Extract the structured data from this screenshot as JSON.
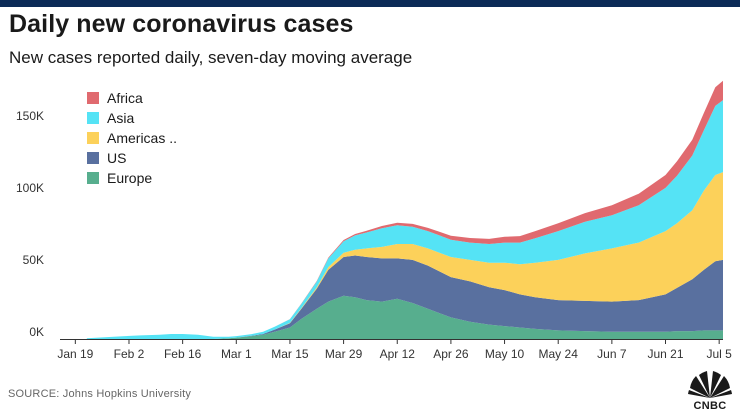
{
  "header": {
    "title": "Daily new coronavirus cases",
    "subtitle": "New cases reported daily, seven-day moving average"
  },
  "footer": {
    "source": "SOURCE: Johns Hopkins University",
    "logo_text": "CNBC"
  },
  "colors": {
    "Africa": "#e06a6f",
    "Asia": "#55e3f5",
    "Americas ..": "#fcd15a",
    "US": "#59709f",
    "Europe": "#57ae8e",
    "topbar": "#0b2a57"
  },
  "chart_data": {
    "type": "area",
    "stacked": true,
    "title": "Daily new coronavirus cases",
    "subtitle": "New cases reported daily, seven-day moving average",
    "xlabel": "",
    "ylabel": "",
    "ylim": [
      0,
      180000
    ],
    "xlim": [
      "2020-01-15",
      "2020-07-06"
    ],
    "grid": false,
    "legend_position": "top-left",
    "legend_order": [
      "Africa",
      "Asia",
      "Americas ..",
      "US",
      "Europe"
    ],
    "x_ticks": [
      "Jan 19",
      "Feb 2",
      "Feb 16",
      "Mar 1",
      "Mar 15",
      "Mar 29",
      "Apr 12",
      "Apr 26",
      "May 10",
      "May 24",
      "Jun 7",
      "Jun 21",
      "Jul 5"
    ],
    "x_tick_dates": [
      "2020-01-19",
      "2020-02-02",
      "2020-02-16",
      "2020-03-01",
      "2020-03-15",
      "2020-03-29",
      "2020-04-12",
      "2020-04-26",
      "2020-05-10",
      "2020-05-24",
      "2020-06-07",
      "2020-06-21",
      "2020-07-05"
    ],
    "y_ticks": [
      0,
      50000,
      100000,
      150000
    ],
    "y_tick_labels": [
      "0K",
      "50K",
      "100K",
      "150K"
    ],
    "x": [
      "2020-01-22",
      "2020-01-29",
      "2020-02-01",
      "2020-02-05",
      "2020-02-10",
      "2020-02-13",
      "2020-02-16",
      "2020-02-20",
      "2020-02-24",
      "2020-02-28",
      "2020-03-01",
      "2020-03-05",
      "2020-03-08",
      "2020-03-11",
      "2020-03-15",
      "2020-03-18",
      "2020-03-22",
      "2020-03-25",
      "2020-03-29",
      "2020-04-01",
      "2020-04-04",
      "2020-04-08",
      "2020-04-12",
      "2020-04-16",
      "2020-04-20",
      "2020-04-23",
      "2020-04-26",
      "2020-05-01",
      "2020-05-06",
      "2020-05-10",
      "2020-05-14",
      "2020-05-18",
      "2020-05-24",
      "2020-05-31",
      "2020-06-07",
      "2020-06-14",
      "2020-06-21",
      "2020-06-24",
      "2020-06-28",
      "2020-07-01",
      "2020-07-04",
      "2020-07-06"
    ],
    "series": [
      {
        "name": "Europe",
        "values": [
          0,
          0,
          0,
          0,
          0,
          0,
          0,
          0,
          0,
          500,
          1000,
          2000,
          3000,
          5000,
          8000,
          14000,
          21000,
          26000,
          30000,
          29000,
          27000,
          26000,
          28000,
          25000,
          21000,
          18000,
          15000,
          12000,
          10000,
          9000,
          8000,
          7000,
          6000,
          5500,
          5000,
          5000,
          5000,
          5500,
          5500,
          6000,
          6000,
          6000
        ]
      },
      {
        "name": "US",
        "values": [
          0,
          0,
          0,
          0,
          0,
          0,
          0,
          0,
          0,
          0,
          0,
          200,
          500,
          1500,
          3000,
          7000,
          14000,
          22000,
          27000,
          29000,
          30000,
          30000,
          28000,
          30000,
          30000,
          29000,
          28000,
          28000,
          26000,
          25000,
          23000,
          22000,
          21000,
          21000,
          21000,
          22000,
          26000,
          30000,
          36000,
          42000,
          48000,
          49000
        ]
      },
      {
        "name": "Americas ..",
        "values": [
          0,
          0,
          0,
          0,
          0,
          0,
          0,
          0,
          0,
          0,
          0,
          0,
          0,
          0,
          200,
          500,
          1000,
          2000,
          3000,
          4000,
          6000,
          8000,
          10000,
          11000,
          12000,
          13000,
          14000,
          15000,
          17000,
          19000,
          21000,
          24000,
          28000,
          33000,
          37000,
          40000,
          44000,
          45000,
          48000,
          55000,
          60000,
          61000
        ]
      },
      {
        "name": "Asia",
        "values": [
          500,
          1500,
          2000,
          2500,
          3000,
          3500,
          3500,
          3000,
          1500,
          1000,
          1000,
          1200,
          1500,
          2000,
          2500,
          3000,
          4000,
          6000,
          8000,
          10000,
          11000,
          13000,
          13000,
          12000,
          12000,
          12000,
          12000,
          12000,
          13000,
          14000,
          15000,
          17000,
          20000,
          22000,
          23000,
          26000,
          30000,
          33000,
          38000,
          42000,
          48000,
          50000
        ]
      },
      {
        "name": "Africa",
        "values": [
          0,
          0,
          0,
          0,
          0,
          0,
          0,
          0,
          0,
          0,
          0,
          0,
          0,
          0,
          100,
          200,
          400,
          600,
          800,
          1000,
          1200,
          1500,
          1800,
          2000,
          2200,
          2500,
          2800,
          3200,
          3600,
          4000,
          4500,
          5000,
          5500,
          6000,
          7000,
          8000,
          9000,
          10000,
          11000,
          12000,
          13000,
          13500
        ]
      }
    ]
  }
}
